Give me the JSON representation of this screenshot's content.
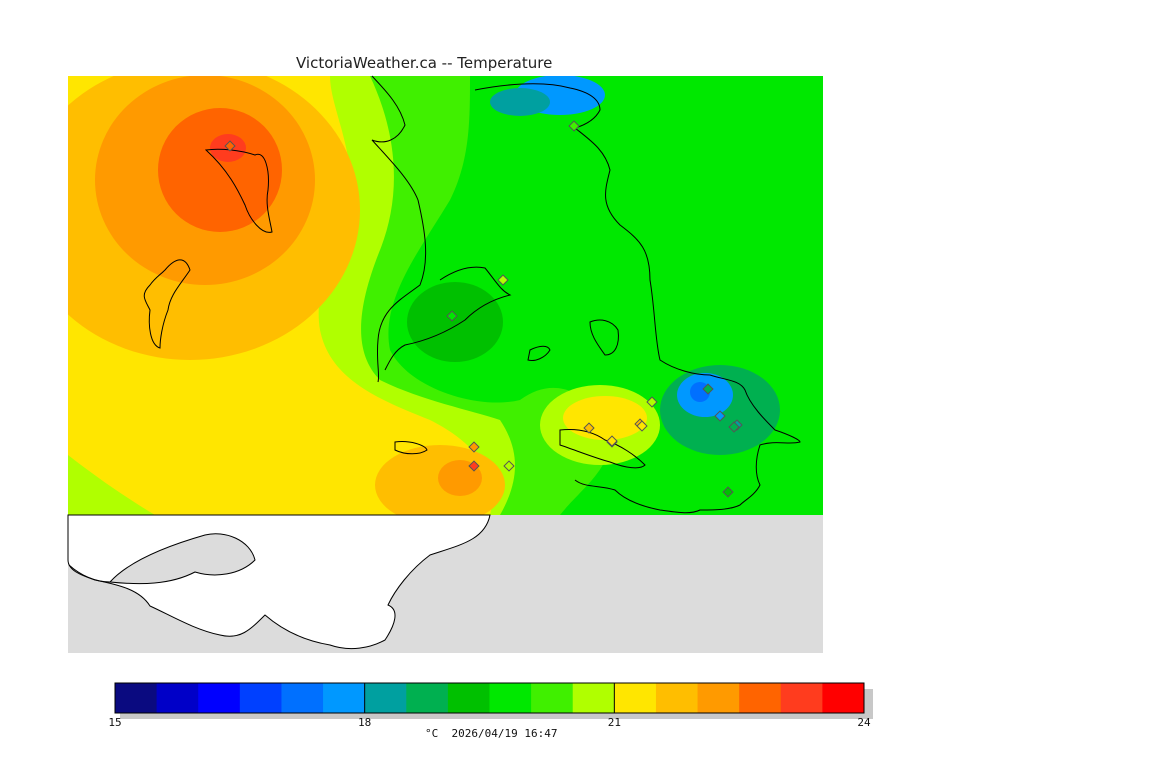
{
  "title": "VictoriaWeather.ca -- Temperature",
  "legend": {
    "min": 15,
    "max": 24,
    "tick_labels": [
      "15",
      "18",
      "21",
      "24"
    ],
    "colors": [
      "#0a0a80",
      "#0000c8",
      "#0000ff",
      "#0040ff",
      "#0070ff",
      "#0098ff",
      "#00a0a0",
      "#00b050",
      "#00c000",
      "#00e800",
      "#40f000",
      "#b0ff00",
      "#ffe600",
      "#ffbe00",
      "#ff9a00",
      "#ff6400",
      "#ff3c1e",
      "#ff0000"
    ],
    "unit": "°C",
    "timestamp": "2026/04/19 16:47",
    "caption": "°C  2026/04/19 16:47"
  },
  "stations": [
    {
      "temp": 22.5
    },
    {
      "temp": 20.0
    },
    {
      "temp": 20.5
    },
    {
      "temp": 19.5
    },
    {
      "temp": 20.5
    },
    {
      "temp": 18.5
    },
    {
      "temp": 17.5
    },
    {
      "temp": 18.0
    },
    {
      "temp": 18.5
    },
    {
      "temp": 18.0
    },
    {
      "temp": 19.0
    },
    {
      "temp": 21.5
    },
    {
      "temp": 21.5
    },
    {
      "temp": 21.0
    },
    {
      "temp": 20.5
    },
    {
      "temp": 22.0
    },
    {
      "temp": 23.0
    },
    {
      "temp": 21.0
    }
  ]
}
